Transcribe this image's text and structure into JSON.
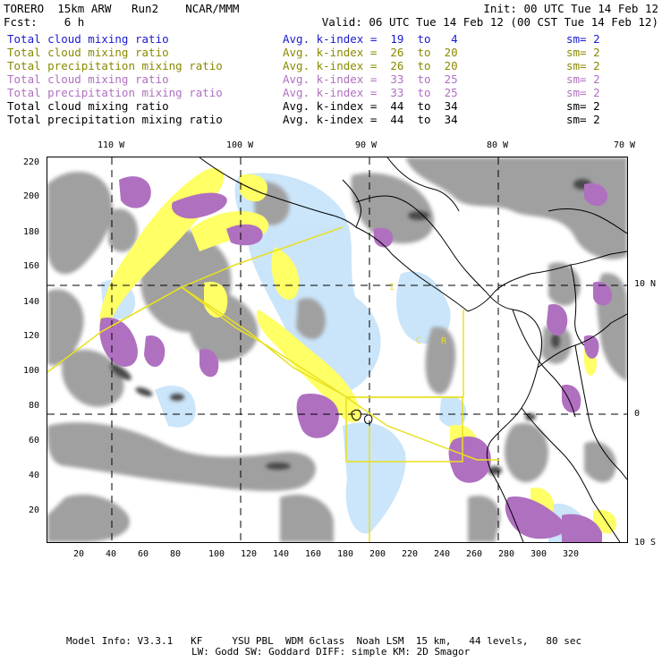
{
  "header": {
    "line1_left": "TORERO  15km ARW   Run2    NCAR/MMM",
    "line2_left": "Fcst:    6 h",
    "line1_right": "Init: 00 UTC Tue 14 Feb 12",
    "line2_right": "Valid: 06 UTC Tue 14 Feb 12 (00 CST Tue 14 Feb 12)"
  },
  "legend": [
    {
      "label": "Total cloud mixing ratio",
      "index": "Avg. k-index =  19  to   4",
      "sm": "sm= 2",
      "color": "#1a1ad0"
    },
    {
      "label": "Total cloud mixing ratio",
      "index": "Avg. k-index =  26  to  20",
      "sm": "sm= 2",
      "color": "#8a8a00"
    },
    {
      "label": "Total precipitation mixing ratio",
      "index": "Avg. k-index =  26  to  20",
      "sm": "sm= 2",
      "color": "#8a8a00"
    },
    {
      "label": "Total cloud mixing ratio",
      "index": "Avg. k-index =  33  to  25",
      "sm": "sm= 2",
      "color": "#b070c0"
    },
    {
      "label": "Total precipitation mixing ratio",
      "index": "Avg. k-index =  33  to  25",
      "sm": "sm= 2",
      "color": "#b070c0"
    },
    {
      "label": "Total cloud mixing ratio",
      "index": "Avg. k-index =  44  to  34",
      "sm": "sm= 2",
      "color": "#000000"
    },
    {
      "label": "Total precipitation mixing ratio",
      "index": "Avg. k-index =  44  to  34",
      "sm": "sm= 2",
      "color": "#000000"
    }
  ],
  "map": {
    "lon_labels": [
      "110 W",
      "100 W",
      "90 W",
      "80 W",
      "70 W"
    ],
    "lat_labels": [
      "10 N",
      "0",
      "10 S"
    ],
    "x_ticks": [
      "20",
      "40",
      "60",
      "80",
      "100",
      "120",
      "140",
      "160",
      "180",
      "200",
      "220",
      "240",
      "260",
      "280",
      "300",
      "320"
    ],
    "y_ticks": [
      "220",
      "200",
      "180",
      "160",
      "140",
      "120",
      "100",
      "80",
      "60",
      "40",
      "20"
    ],
    "box_letters": [
      "I",
      "C",
      "R"
    ],
    "colors": {
      "gray": "#a0a0a0",
      "dark_gray": "#4a4a4a",
      "purple": "#b070c0",
      "yellow": "#ffff66",
      "light_blue": "#c8e4fa",
      "box": "#e8e020"
    }
  },
  "footer": {
    "line1": "Model Info: V3.3.1   KF     YSU PBL  WDM 6class  Noah LSM  15 km,   44 levels,   80 sec",
    "line2": "LW: Godd SW: Goddard DIFF: simple KM: 2D Smagor"
  }
}
